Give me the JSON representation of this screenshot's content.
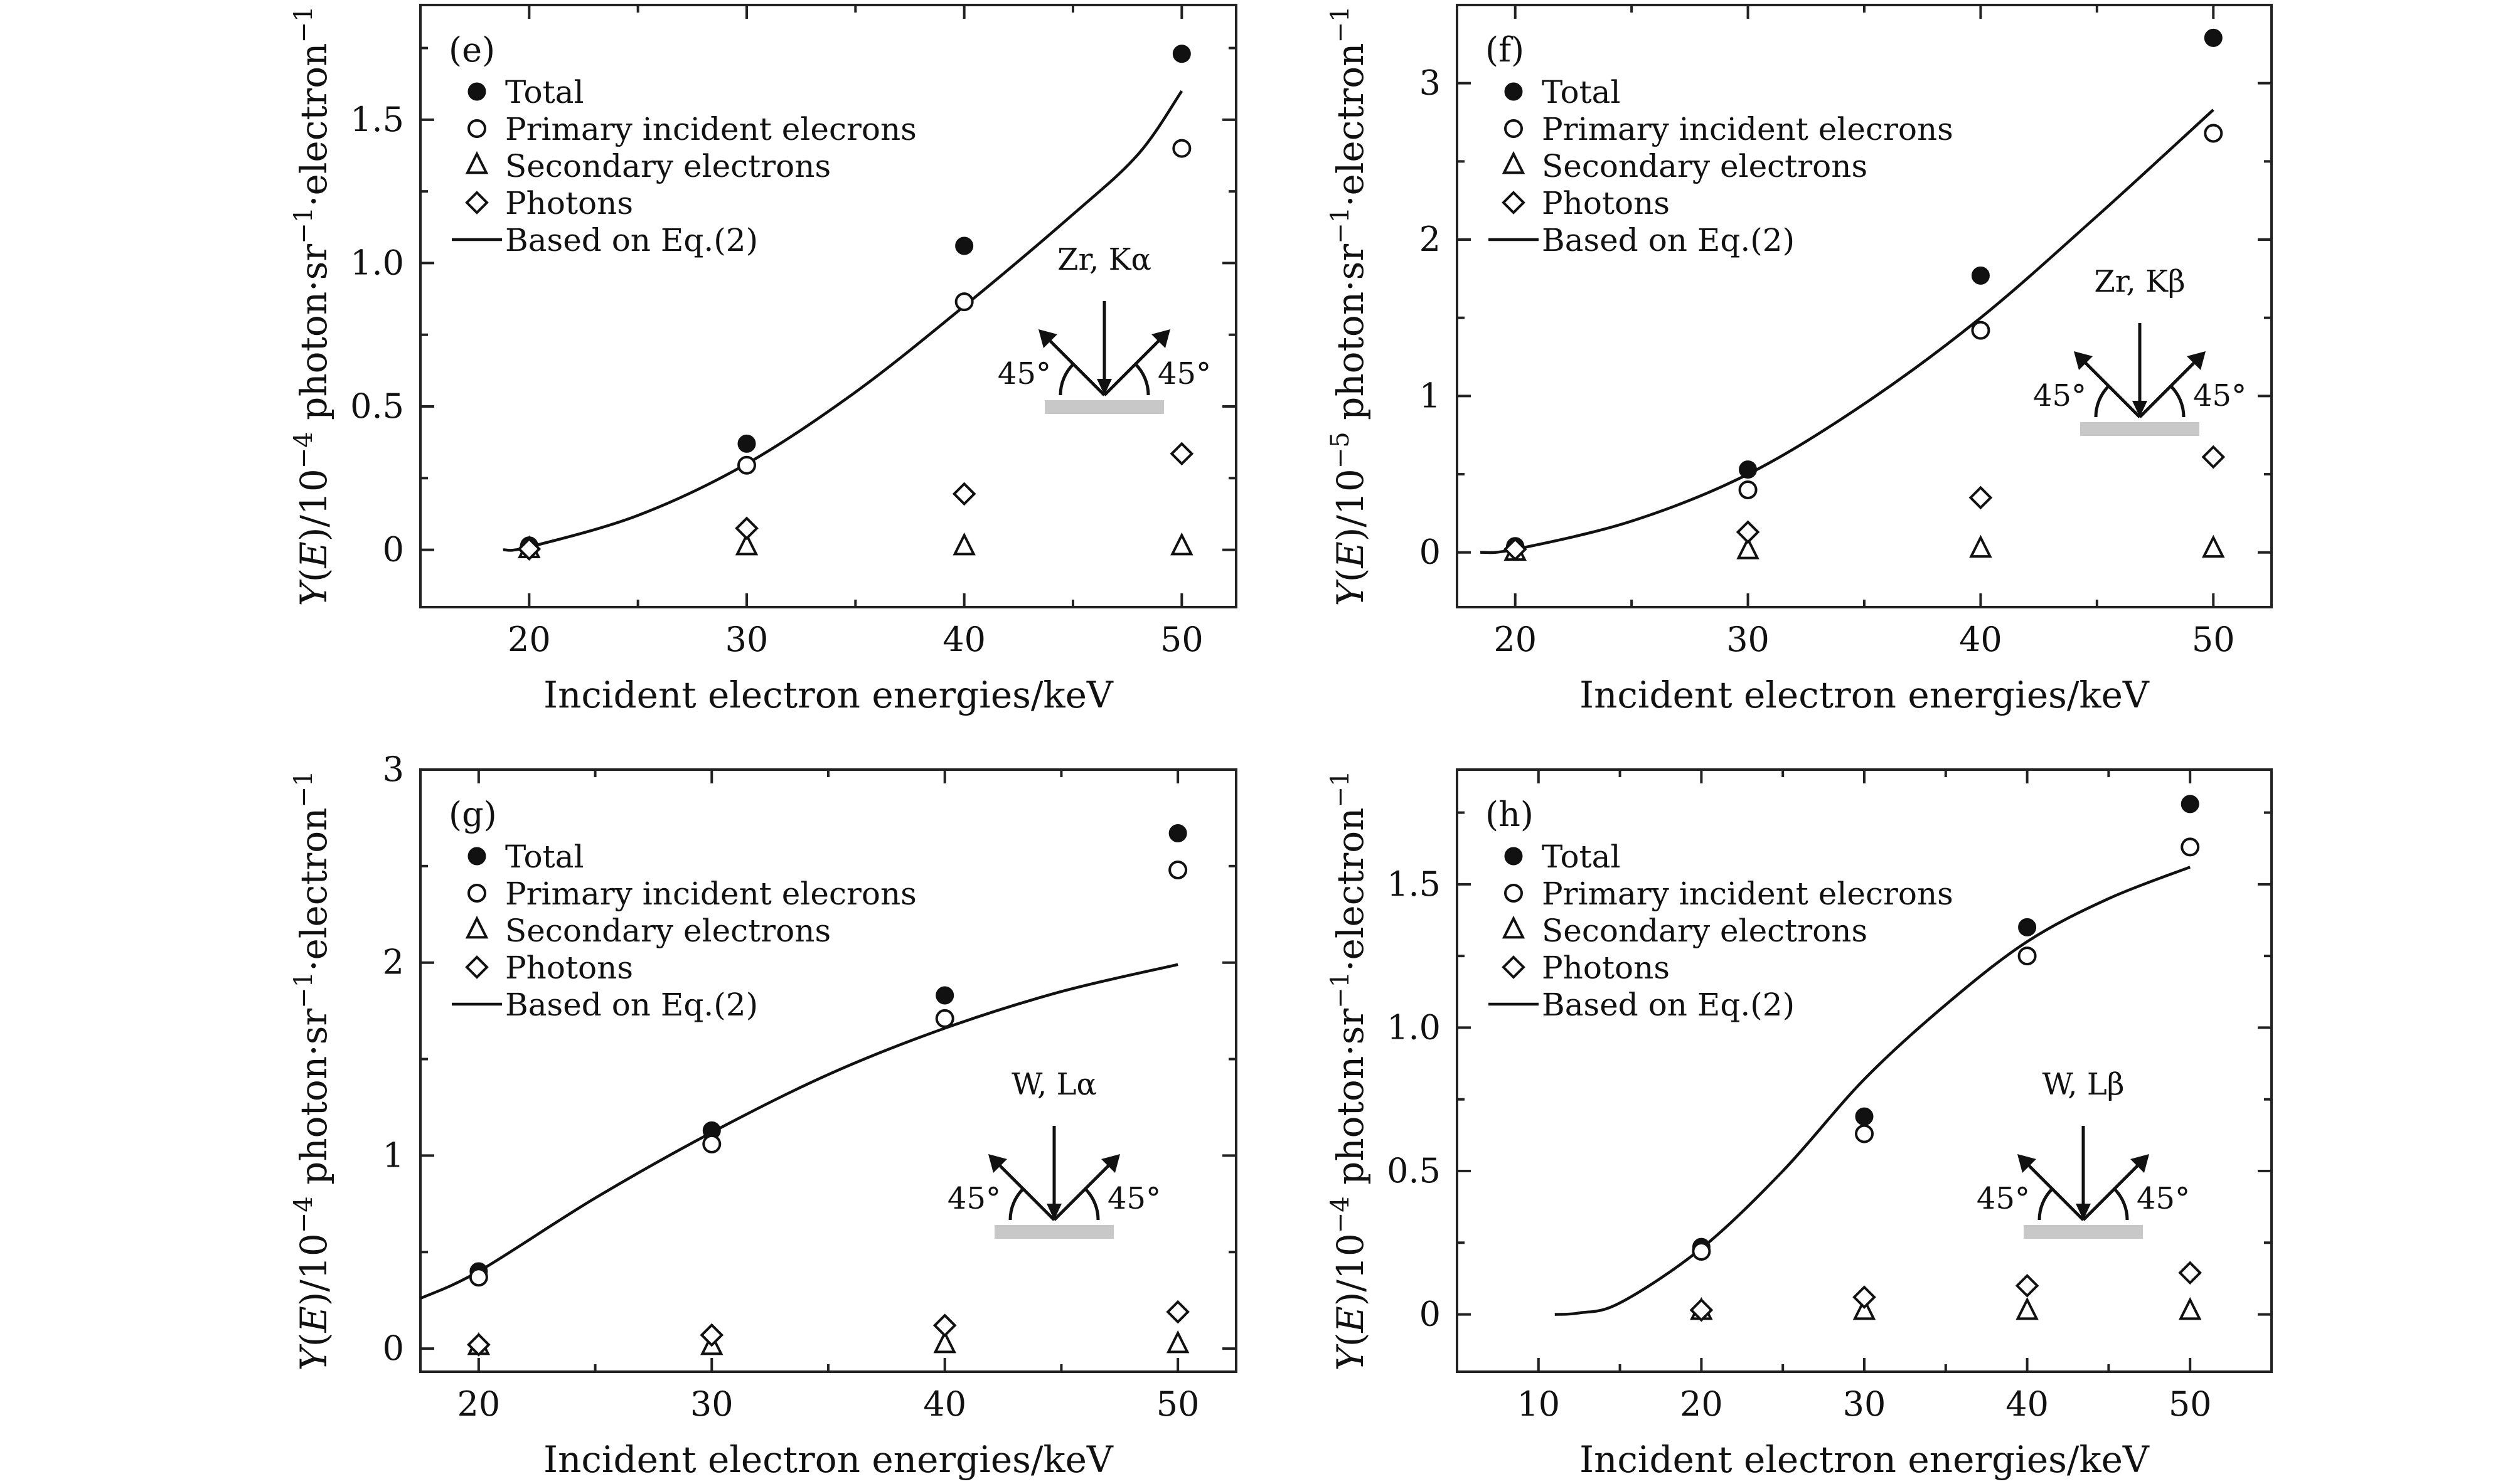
{
  "chart_data": [
    {
      "type": "scatter",
      "panel_label": "(e)",
      "xlabel": "Incident electron energies/keV",
      "ylabel": "Y(E)/10^-4 photon·sr^-1·electron^-1",
      "y_exponent": "−4",
      "xlim": [
        15,
        52.5
      ],
      "ylim": [
        -0.2,
        1.9
      ],
      "xticks": [
        20,
        30,
        40,
        50
      ],
      "xtick_labels": [
        "20",
        "30",
        "40",
        "50"
      ],
      "yticks": [
        0,
        0.5,
        1.0,
        1.5
      ],
      "ytick_labels": [
        "0",
        "0.5",
        "1.0",
        "1.5"
      ],
      "legend": [
        "Total",
        "Primary incident elecrons",
        "Secondary electrons",
        "Photons",
        "Based on Eq.(2)"
      ],
      "inset": {
        "label": "Zr, Kα",
        "angle_left": "45°",
        "angle_right": "45°"
      },
      "series": [
        {
          "name": "Total",
          "marker": "filled-circle",
          "x": [
            20,
            30,
            40,
            50
          ],
          "y": [
            0.015,
            0.37,
            1.06,
            1.73
          ]
        },
        {
          "name": "Primary incident elecrons",
          "marker": "open-circle",
          "x": [
            20,
            30,
            40,
            50
          ],
          "y": [
            0.01,
            0.295,
            0.865,
            1.4
          ]
        },
        {
          "name": "Secondary electrons",
          "marker": "open-triangle",
          "x": [
            20,
            30,
            40,
            50
          ],
          "y": [
            0.0,
            0.01,
            0.01,
            0.01
          ]
        },
        {
          "name": "Photons",
          "marker": "open-diamond",
          "x": [
            20,
            30,
            40,
            50
          ],
          "y": [
            0.003,
            0.075,
            0.195,
            0.335
          ]
        },
        {
          "name": "Based on Eq.(2)",
          "marker": "line",
          "x": [
            18.8,
            20,
            25,
            30,
            35,
            40,
            45,
            48,
            50
          ],
          "y": [
            0.0,
            0.01,
            0.12,
            0.3,
            0.55,
            0.85,
            1.17,
            1.38,
            1.6
          ]
        }
      ]
    },
    {
      "type": "scatter",
      "panel_label": "(f)",
      "xlabel": "Incident electron energies/keV",
      "ylabel": "Y(E)/10^-5 photon·sr^-1·electron^-1",
      "y_exponent": "−5",
      "xlim": [
        17.5,
        52.5
      ],
      "ylim": [
        -0.35,
        3.5
      ],
      "xticks": [
        20,
        30,
        40,
        50
      ],
      "xtick_labels": [
        "20",
        "30",
        "40",
        "50"
      ],
      "yticks": [
        0,
        1,
        2,
        3
      ],
      "ytick_labels": [
        "0",
        "1",
        "2",
        "3"
      ],
      "legend": [
        "Total",
        "Primary incident elecrons",
        "Secondary electrons",
        "Photons",
        "Based on Eq.(2)"
      ],
      "inset": {
        "label": "Zr, Kβ",
        "angle_left": "45°",
        "angle_right": "45°"
      },
      "series": [
        {
          "name": "Total",
          "marker": "filled-circle",
          "x": [
            20,
            30,
            40,
            50
          ],
          "y": [
            0.04,
            0.53,
            1.77,
            3.29
          ]
        },
        {
          "name": "Primary incident elecrons",
          "marker": "open-circle",
          "x": [
            20,
            30,
            40,
            50
          ],
          "y": [
            0.03,
            0.4,
            1.42,
            2.68
          ]
        },
        {
          "name": "Secondary electrons",
          "marker": "open-triangle",
          "x": [
            20,
            30,
            40,
            50
          ],
          "y": [
            0.0,
            0.01,
            0.02,
            0.02
          ]
        },
        {
          "name": "Photons",
          "marker": "open-diamond",
          "x": [
            20,
            30,
            40,
            50
          ],
          "y": [
            0.02,
            0.13,
            0.35,
            0.61
          ]
        },
        {
          "name": "Based on Eq.(2)",
          "marker": "line",
          "x": [
            18.5,
            20,
            25,
            30,
            35,
            40,
            45,
            50
          ],
          "y": [
            0.0,
            0.02,
            0.2,
            0.5,
            0.95,
            1.5,
            2.15,
            2.83
          ]
        }
      ]
    },
    {
      "type": "scatter",
      "panel_label": "(g)",
      "xlabel": "Incident electron energies/keV",
      "ylabel": "Y(E)/10^-4 photon·sr^-1·electron^-1",
      "y_exponent": "−4",
      "xlim": [
        17.5,
        52.5
      ],
      "ylim": [
        -0.12,
        3.0
      ],
      "xticks": [
        20,
        30,
        40,
        50
      ],
      "xtick_labels": [
        "20",
        "30",
        "40",
        "50"
      ],
      "yticks": [
        0,
        1,
        2,
        3
      ],
      "ytick_labels": [
        "0",
        "1",
        "2",
        "3"
      ],
      "legend": [
        "Total",
        "Primary incident elecrons",
        "Secondary electrons",
        "Photons",
        "Based on Eq.(2)"
      ],
      "inset": {
        "label": "W, Lα",
        "angle_left": "45°",
        "angle_right": "45°"
      },
      "series": [
        {
          "name": "Total",
          "marker": "filled-circle",
          "x": [
            20,
            30,
            40,
            50
          ],
          "y": [
            0.4,
            1.13,
            1.83,
            2.67
          ]
        },
        {
          "name": "Primary incident elecrons",
          "marker": "open-circle",
          "x": [
            20,
            30,
            40,
            50
          ],
          "y": [
            0.37,
            1.06,
            1.71,
            2.48
          ]
        },
        {
          "name": "Secondary electrons",
          "marker": "open-triangle",
          "x": [
            20,
            30,
            40,
            50
          ],
          "y": [
            0.01,
            0.01,
            0.02,
            0.02
          ]
        },
        {
          "name": "Photons",
          "marker": "open-diamond",
          "x": [
            20,
            30,
            40,
            50
          ],
          "y": [
            0.02,
            0.07,
            0.12,
            0.19
          ]
        },
        {
          "name": "Based on Eq.(2)",
          "marker": "line",
          "x": [
            17.5,
            20,
            25,
            30,
            35,
            40,
            45,
            50
          ],
          "y": [
            0.26,
            0.4,
            0.78,
            1.12,
            1.42,
            1.66,
            1.85,
            1.99
          ]
        }
      ]
    },
    {
      "type": "scatter",
      "panel_label": "(h)",
      "xlabel": "Incident electron energies/keV",
      "ylabel": "Y(E)/10^-4 photon·sr^-1·electron^-1",
      "y_exponent": "−4",
      "xlim": [
        5,
        55
      ],
      "ylim": [
        -0.2,
        1.9
      ],
      "xticks": [
        10,
        20,
        30,
        40,
        50
      ],
      "xtick_labels": [
        "10",
        "20",
        "30",
        "40",
        "50"
      ],
      "yticks": [
        0,
        0.5,
        1.0,
        1.5
      ],
      "ytick_labels": [
        "0",
        "0.5",
        "1.0",
        "1.5"
      ],
      "legend": [
        "Total",
        "Primary incident elecrons",
        "Secondary electrons",
        "Photons",
        "Based on Eq.(2)"
      ],
      "inset": {
        "label": "W, Lβ",
        "angle_left": "45°",
        "angle_right": "45°"
      },
      "series": [
        {
          "name": "Total",
          "marker": "filled-circle",
          "x": [
            20,
            30,
            40,
            50
          ],
          "y": [
            0.235,
            0.69,
            1.35,
            1.78
          ]
        },
        {
          "name": "Primary incident elecrons",
          "marker": "open-circle",
          "x": [
            20,
            30,
            40,
            50
          ],
          "y": [
            0.22,
            0.63,
            1.25,
            1.63
          ]
        },
        {
          "name": "Secondary electrons",
          "marker": "open-triangle",
          "x": [
            20,
            30,
            40,
            50
          ],
          "y": [
            0.01,
            0.01,
            0.01,
            0.01
          ]
        },
        {
          "name": "Photons",
          "marker": "open-diamond",
          "x": [
            20,
            30,
            40,
            50
          ],
          "y": [
            0.015,
            0.06,
            0.1,
            0.145
          ]
        },
        {
          "name": "Based on Eq.(2)",
          "marker": "line",
          "x": [
            11,
            12.5,
            15,
            20,
            25,
            30,
            35,
            40,
            45,
            50
          ],
          "y": [
            0.0,
            0.005,
            0.04,
            0.23,
            0.5,
            0.82,
            1.08,
            1.3,
            1.45,
            1.56
          ]
        }
      ]
    }
  ]
}
